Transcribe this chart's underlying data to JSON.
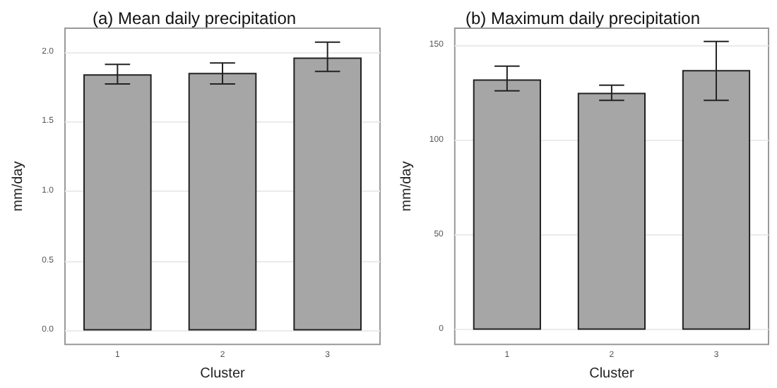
{
  "chart_data": [
    {
      "type": "bar",
      "title": "(a) Mean daily precipitation",
      "xlabel": "Cluster",
      "ylabel": "mm/day",
      "categories": [
        "1",
        "2",
        "3"
      ],
      "series": [
        {
          "color": "#a6a6a6",
          "values": [
            1.84,
            1.85,
            1.96
          ],
          "errors": [
            [
              1.77,
              1.91
            ],
            [
              1.77,
              1.92
            ],
            [
              1.86,
              2.07
            ]
          ]
        }
      ],
      "ylim": [
        -0.1,
        2.17
      ],
      "yticks": [
        {
          "value": 0,
          "label": "0.0"
        },
        {
          "value": 0.5,
          "label": "0.5"
        },
        {
          "value": 1,
          "label": "1.0"
        },
        {
          "value": 1.5,
          "label": "1.5"
        },
        {
          "value": 2,
          "label": "2.0"
        }
      ],
      "grid": "y"
    },
    {
      "type": "bar",
      "title": "(b) Maximum daily precipitation",
      "xlabel": "Cluster",
      "ylabel": "mm/day",
      "categories": [
        "1",
        "2",
        "3"
      ],
      "series": [
        {
          "color": "#a6a6a6",
          "values": [
            132,
            125,
            137
          ],
          "errors": [
            [
              126,
              139
            ],
            [
              121,
              129
            ],
            [
              121,
              152
            ]
          ]
        }
      ],
      "ylim": [
        -7.7,
        159
      ],
      "yticks": [
        0,
        50,
        100,
        150
      ],
      "grid": "y"
    }
  ]
}
